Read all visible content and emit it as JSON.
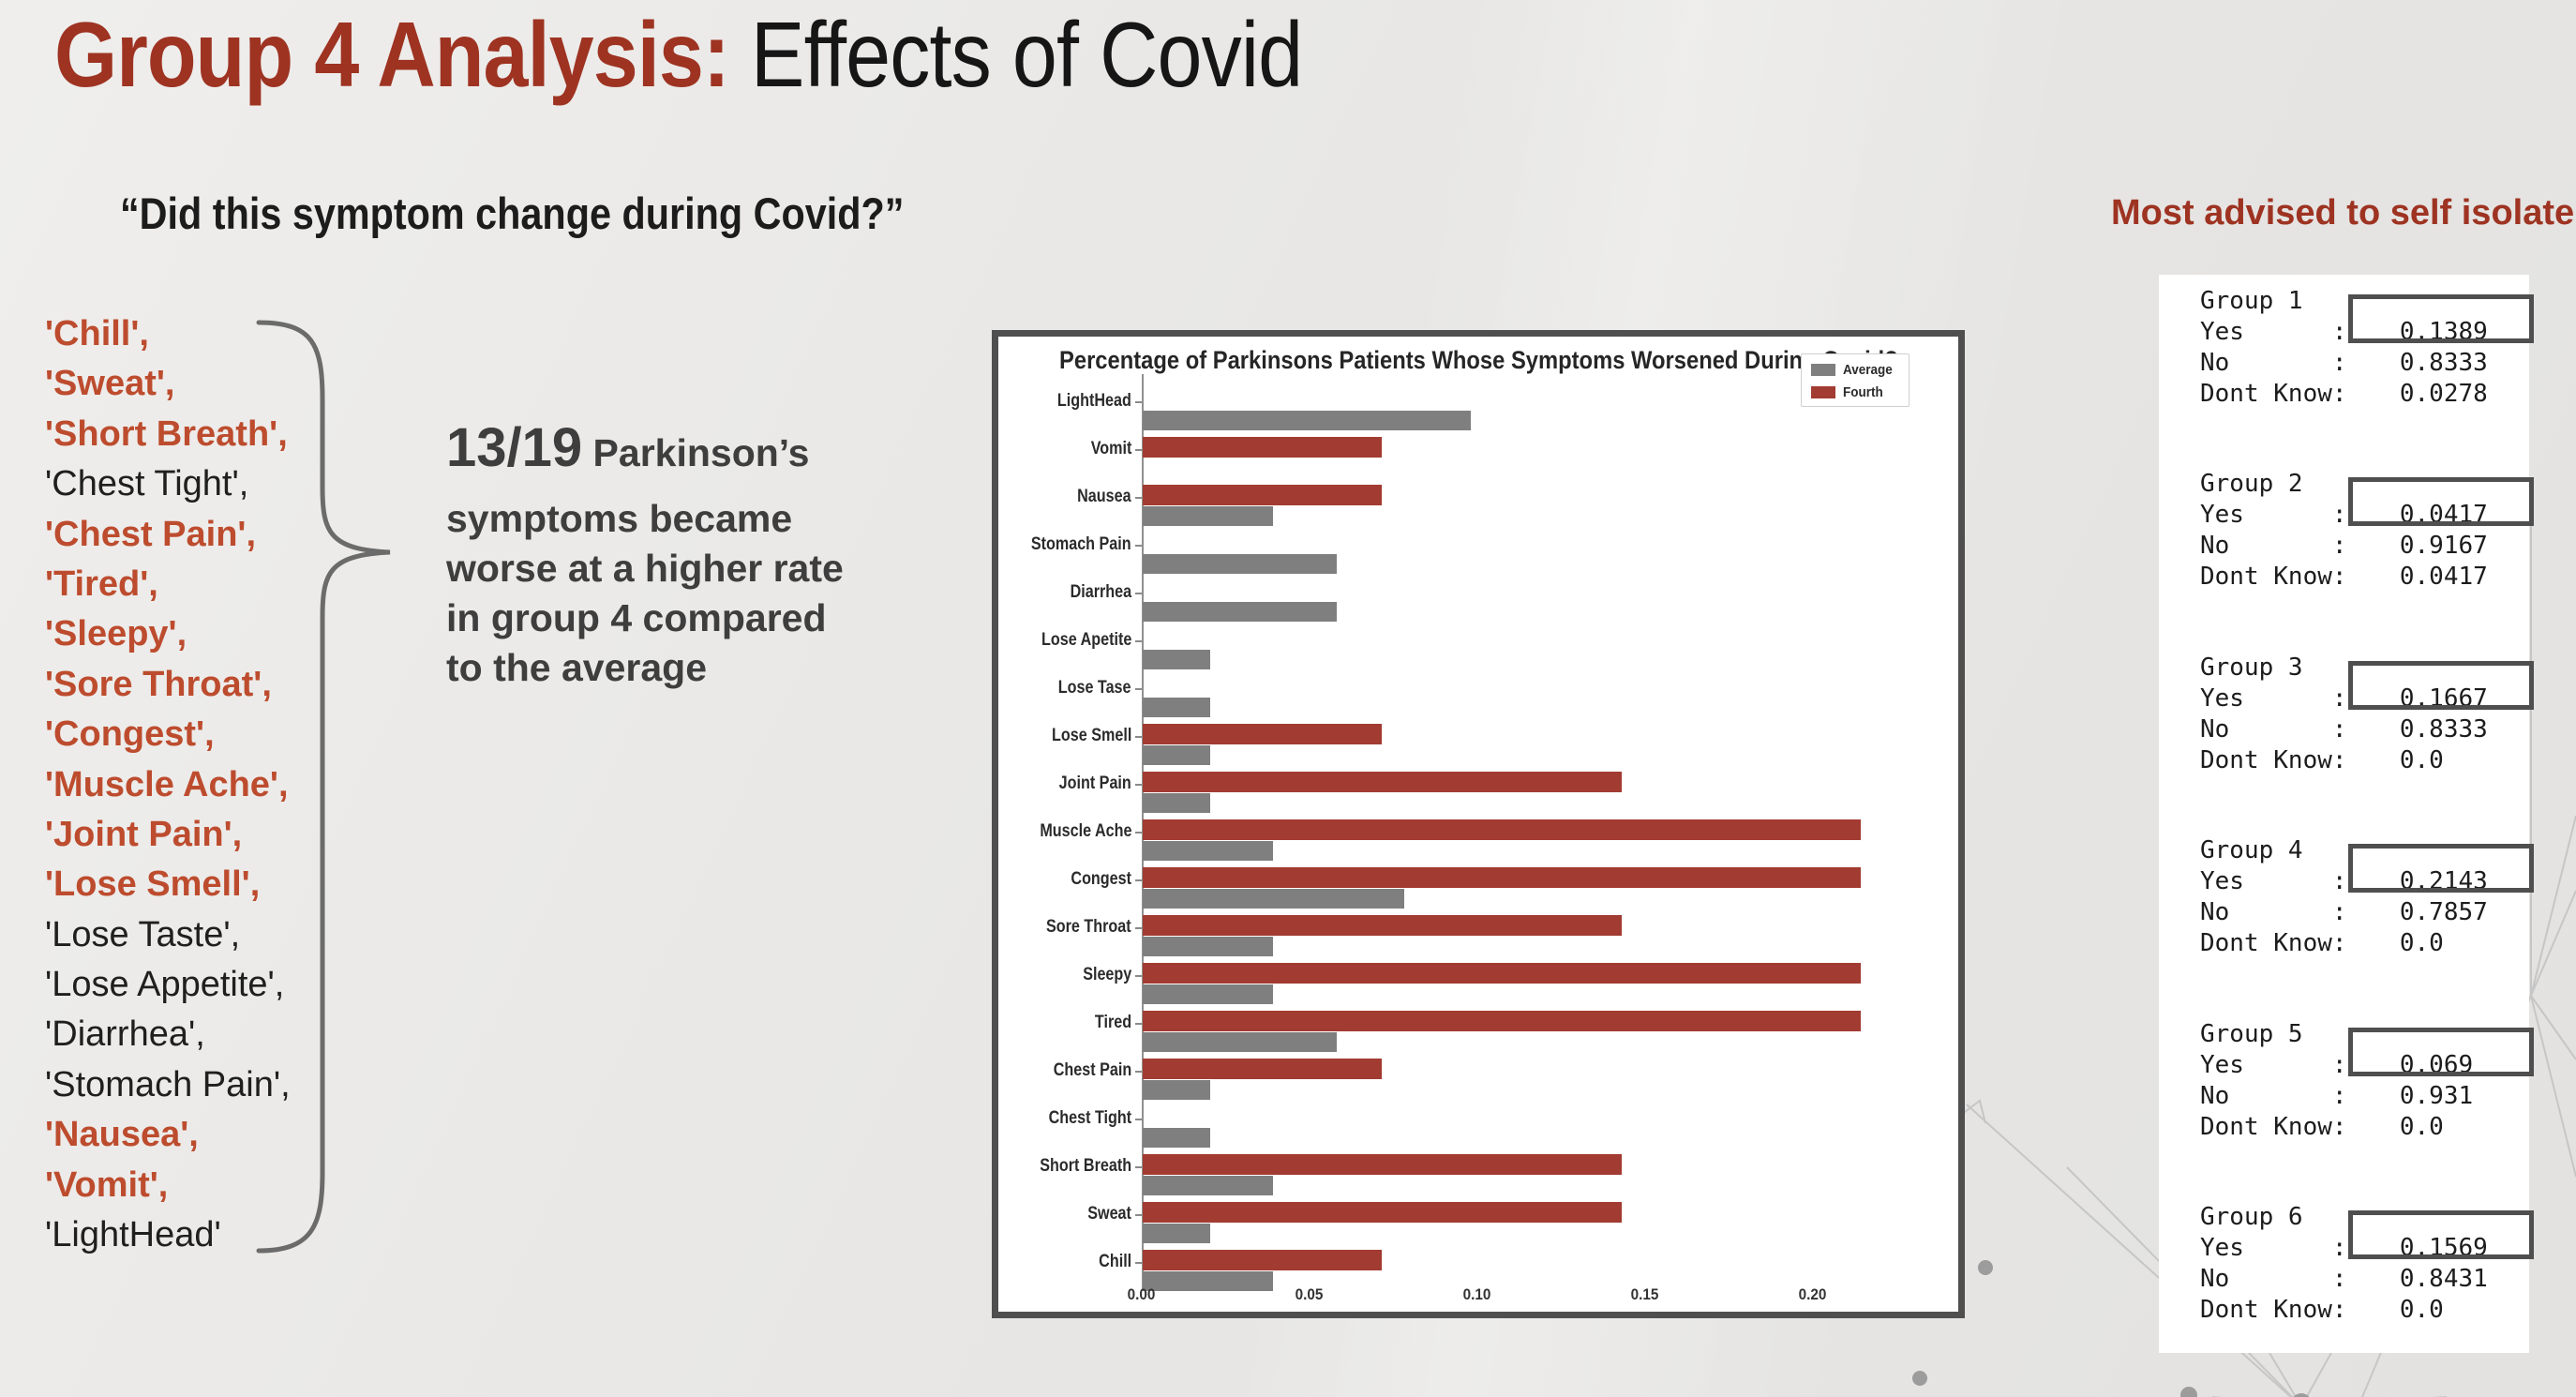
{
  "title": {
    "accent": "Group 4 Analysis:",
    "rest": " Effects of Covid"
  },
  "quote": "“Did this symptom change during Covid?”",
  "symptoms": [
    {
      "text": "'Chill',",
      "highlight": true
    },
    {
      "text": "'Sweat',",
      "highlight": true
    },
    {
      "text": "'Short Breath',",
      "highlight": true
    },
    {
      "text": "'Chest Tight',",
      "highlight": false
    },
    {
      "text": "'Chest Pain',",
      "highlight": true
    },
    {
      "text": "'Tired',",
      "highlight": true
    },
    {
      "text": "'Sleepy',",
      "highlight": true
    },
    {
      "text": "'Sore Throat',",
      "highlight": true
    },
    {
      "text": "'Congest',",
      "highlight": true
    },
    {
      "text": "'Muscle Ache',",
      "highlight": true
    },
    {
      "text": "'Joint Pain',",
      "highlight": true
    },
    {
      "text": "'Lose Smell',",
      "highlight": true
    },
    {
      "text": "'Lose Taste',",
      "highlight": false
    },
    {
      "text": "'Lose Appetite',",
      "highlight": false
    },
    {
      "text": "'Diarrhea',",
      "highlight": false
    },
    {
      "text": "'Stomach Pain',",
      "highlight": false
    },
    {
      "text": "'Nausea',",
      "highlight": true
    },
    {
      "text": "'Vomit',",
      "highlight": true
    },
    {
      "text": "'LightHead'",
      "highlight": false
    }
  ],
  "stat": {
    "big": "13/19",
    "first_line_rest": " Parkinson’s",
    "lines": [
      "symptoms became",
      "worse at a higher rate",
      "in group 4 compared",
      "to the average"
    ]
  },
  "right_header": "Most advised to self isolate",
  "panel": {
    "groups": [
      {
        "name": "Group 1",
        "rows": [
          {
            "label": "Yes",
            "value": "0.1389",
            "boxed": true
          },
          {
            "label": "No",
            "value": "0.8333",
            "boxed": false
          },
          {
            "label": "Dont Know",
            "value": "0.0278",
            "boxed": false
          }
        ]
      },
      {
        "name": "Group 2",
        "rows": [
          {
            "label": "Yes",
            "value": "0.0417",
            "boxed": true
          },
          {
            "label": "No",
            "value": "0.9167",
            "boxed": false
          },
          {
            "label": "Dont Know",
            "value": "0.0417",
            "boxed": false
          }
        ]
      },
      {
        "name": "Group 3",
        "rows": [
          {
            "label": "Yes",
            "value": "0.1667",
            "boxed": true
          },
          {
            "label": "No",
            "value": "0.8333",
            "boxed": false
          },
          {
            "label": "Dont Know",
            "value": "0.0",
            "boxed": false
          }
        ]
      },
      {
        "name": "Group 4",
        "rows": [
          {
            "label": "Yes",
            "value": "0.2143",
            "boxed": true
          },
          {
            "label": "No",
            "value": "0.7857",
            "boxed": false
          },
          {
            "label": "Dont Know",
            "value": "0.0",
            "boxed": false
          }
        ]
      },
      {
        "name": "Group 5",
        "rows": [
          {
            "label": "Yes",
            "value": "0.069",
            "boxed": true
          },
          {
            "label": "No",
            "value": "0.931",
            "boxed": false
          },
          {
            "label": "Dont Know",
            "value": "0.0",
            "boxed": false
          }
        ]
      },
      {
        "name": "Group 6",
        "rows": [
          {
            "label": "Yes",
            "value": "0.1569",
            "boxed": true
          },
          {
            "label": "No",
            "value": "0.8431",
            "boxed": false
          },
          {
            "label": "Dont Know",
            "value": "0.0",
            "boxed": false
          }
        ]
      }
    ]
  },
  "chart_data": {
    "type": "bar",
    "orientation": "horizontal",
    "title": "Percentage of Parkinsons Patients Whose Symptoms Worsened During Covid?",
    "categories_top_to_bottom": [
      "LightHead",
      "Vomit",
      "Nausea",
      "Stomach Pain",
      "Diarrhea",
      "Lose Apetite",
      "Lose Tase",
      "Lose Smell",
      "Joint Pain",
      "Muscle Ache",
      "Congest",
      "Sore Throat",
      "Sleepy",
      "Tired",
      "Chest Pain",
      "Chest Tight",
      "Short Breath",
      "Sweat",
      "Chill"
    ],
    "series": [
      {
        "name": "Average",
        "color": "#7f7f7f",
        "values": [
          0.098,
          0.0,
          0.039,
          0.058,
          0.058,
          0.02,
          0.02,
          0.02,
          0.02,
          0.039,
          0.078,
          0.039,
          0.039,
          0.058,
          0.02,
          0.02,
          0.039,
          0.02,
          0.039
        ]
      },
      {
        "name": "Fourth",
        "color": "#a23b31",
        "values": [
          0.0,
          0.0714,
          0.0714,
          0.0,
          0.0,
          0.0,
          0.0,
          0.0714,
          0.1429,
          0.2143,
          0.2143,
          0.1429,
          0.2143,
          0.2143,
          0.0714,
          0.0,
          0.1429,
          0.1429,
          0.0714
        ]
      }
    ],
    "xlim": [
      0,
      0.2366
    ],
    "xticks": [
      "0.00",
      "0.05",
      "0.10",
      "0.15",
      "0.20"
    ],
    "xtick_values": [
      0.0,
      0.05,
      0.1,
      0.15,
      0.2
    ],
    "legend_position": "upper right",
    "grid": false
  },
  "colors": {
    "title_accent": "#9e3322",
    "list_highlight": "#bd4c2e",
    "bar_average": "#7f7f7f",
    "bar_fourth": "#a23b31",
    "panel_box_border": "#4f4f4f",
    "background": "#e8e7e5"
  }
}
